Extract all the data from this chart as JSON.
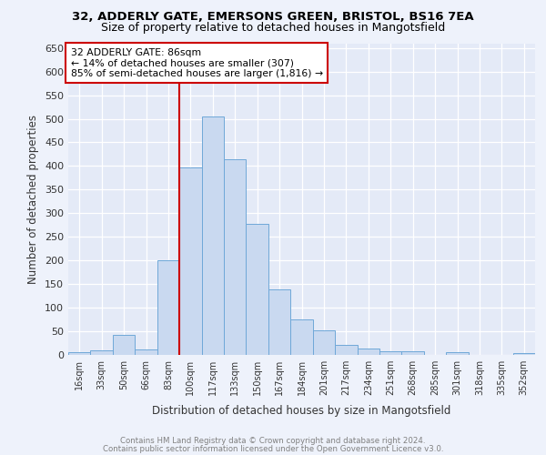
{
  "title1": "32, ADDERLY GATE, EMERSONS GREEN, BRISTOL, BS16 7EA",
  "title2": "Size of property relative to detached houses in Mangotsfield",
  "xlabel": "Distribution of detached houses by size in Mangotsfield",
  "ylabel": "Number of detached properties",
  "categories": [
    "16sqm",
    "33sqm",
    "50sqm",
    "66sqm",
    "83sqm",
    "100sqm",
    "117sqm",
    "133sqm",
    "150sqm",
    "167sqm",
    "184sqm",
    "201sqm",
    "217sqm",
    "234sqm",
    "251sqm",
    "268sqm",
    "285sqm",
    "301sqm",
    "318sqm",
    "335sqm",
    "352sqm"
  ],
  "values": [
    5,
    10,
    43,
    12,
    200,
    397,
    505,
    415,
    277,
    138,
    75,
    52,
    22,
    13,
    8,
    7,
    0,
    5,
    0,
    0,
    4
  ],
  "bar_color": "#c9d9f0",
  "bar_edge_color": "#6fa8d8",
  "property_label": "32 ADDERLY GATE: 86sqm",
  "annotation_line1": "← 14% of detached houses are smaller (307)",
  "annotation_line2": "85% of semi-detached houses are larger (1,816) →",
  "vline_x_index": 4.5,
  "vline_color": "#cc0000",
  "annotation_box_color": "#cc0000",
  "ylim": [
    0,
    660
  ],
  "yticks": [
    0,
    50,
    100,
    150,
    200,
    250,
    300,
    350,
    400,
    450,
    500,
    550,
    600,
    650
  ],
  "footnote1": "Contains HM Land Registry data © Crown copyright and database right 2024.",
  "footnote2": "Contains public sector information licensed under the Open Government Licence v3.0.",
  "background_color": "#eef2fb",
  "plot_bg_color": "#e4eaf7"
}
